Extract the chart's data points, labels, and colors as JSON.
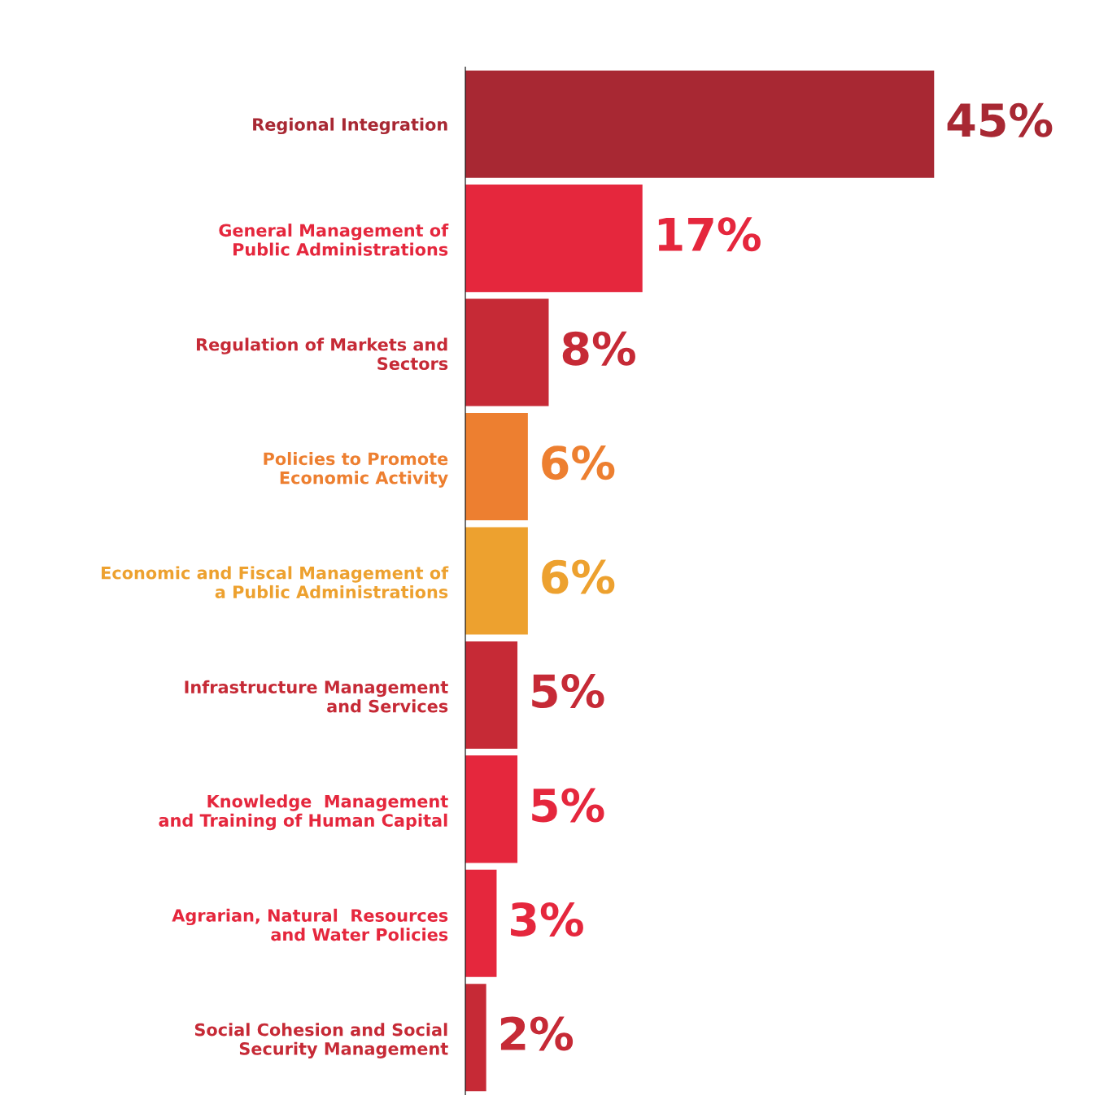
{
  "chart_data": {
    "type": "bar",
    "orientation": "horizontal",
    "categories": [
      "Regional Integration",
      "General Management of\nPublic Administrations",
      "Regulation of Markets and\nSectors",
      "Policies to Promote\nEconomic Activity",
      "Economic and Fiscal Management of\na Public Administrations",
      "Infrastructure Management\nand Services",
      "Knowledge  Management\nand Training of Human Capital",
      "Agrarian, Natural  Resources\nand Water Policies",
      "Social Cohesion and Social\nSecurity Management"
    ],
    "values": [
      45,
      17,
      8,
      6,
      6,
      5,
      5,
      3,
      2
    ],
    "value_labels": [
      "45%",
      "17%",
      "8%",
      "6%",
      "6%",
      "5%",
      "5%",
      "3%",
      "2%"
    ],
    "colors": [
      "#a82833",
      "#e5273d",
      "#c62a36",
      "#ed7f30",
      "#eda12f",
      "#c62a36",
      "#e5273d",
      "#e5273d",
      "#c62a36"
    ]
  }
}
